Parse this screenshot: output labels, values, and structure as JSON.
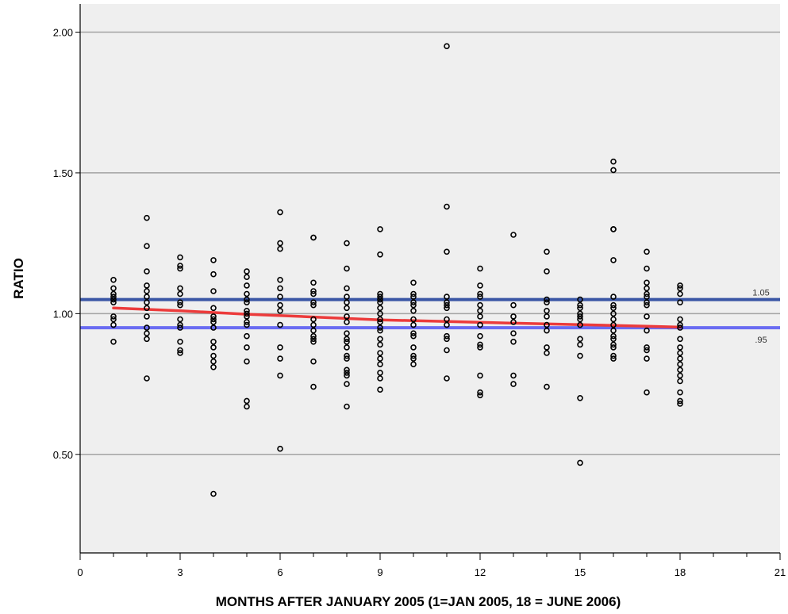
{
  "chart_data": {
    "type": "scatter",
    "xlabel": "MONTHS AFTER JANUARY 2005 (1=JAN 2005, 18 = JUNE 2006)",
    "ylabel": "RATIO",
    "xlim": [
      0,
      21
    ],
    "ylim": [
      0.15,
      2.1
    ],
    "x_ticks": [
      0,
      3,
      6,
      9,
      12,
      15,
      18,
      21
    ],
    "x_minor_step": 1,
    "y_ticks": [
      0.5,
      1.0,
      1.5,
      2.0
    ],
    "y_tick_labels": [
      "0.50",
      "1.00",
      "1.50",
      "2.00"
    ],
    "grid": "horizontal",
    "colors": {
      "plot_background": "#efefef",
      "gridline": "#a3a3a3",
      "marker": "#000000",
      "fit_line": "#ec3b3b",
      "upper_reference": "#3a56a5",
      "lower_reference": "#6a6cf2"
    },
    "reference_lines": [
      {
        "value": 1.05,
        "label": "1.05",
        "color": "#3a56a5"
      },
      {
        "value": 0.95,
        "label": ".95",
        "color": "#6a6cf2"
      }
    ],
    "fit_line": {
      "x": [
        1,
        3,
        5,
        7,
        9,
        11,
        13,
        15,
        17,
        18
      ],
      "y": [
        1.02,
        1.01,
        0.998,
        0.988,
        0.978,
        0.972,
        0.966,
        0.961,
        0.955,
        0.952
      ]
    },
    "points": [
      [
        1,
        1.12
      ],
      [
        1,
        1.09
      ],
      [
        1,
        1.07
      ],
      [
        1,
        1.06
      ],
      [
        1,
        1.05
      ],
      [
        1,
        1.04
      ],
      [
        1,
        0.99
      ],
      [
        1,
        0.98
      ],
      [
        1,
        0.96
      ],
      [
        1,
        0.9
      ],
      [
        2,
        1.34
      ],
      [
        2,
        1.24
      ],
      [
        2,
        1.15
      ],
      [
        2,
        1.1
      ],
      [
        2,
        1.08
      ],
      [
        2,
        1.06
      ],
      [
        2,
        1.04
      ],
      [
        2,
        1.02
      ],
      [
        2,
        0.99
      ],
      [
        2,
        0.95
      ],
      [
        2,
        0.93
      ],
      [
        2,
        0.91
      ],
      [
        2,
        0.77
      ],
      [
        3,
        1.2
      ],
      [
        3,
        1.17
      ],
      [
        3,
        1.16
      ],
      [
        3,
        1.09
      ],
      [
        3,
        1.07
      ],
      [
        3,
        1.04
      ],
      [
        3,
        1.03
      ],
      [
        3,
        0.98
      ],
      [
        3,
        0.96
      ],
      [
        3,
        0.95
      ],
      [
        3,
        0.9
      ],
      [
        3,
        0.87
      ],
      [
        3,
        0.86
      ],
      [
        4,
        1.19
      ],
      [
        4,
        1.14
      ],
      [
        4,
        1.08
      ],
      [
        4,
        1.02
      ],
      [
        4,
        0.99
      ],
      [
        4,
        0.98
      ],
      [
        4,
        0.97
      ],
      [
        4,
        0.95
      ],
      [
        4,
        0.9
      ],
      [
        4,
        0.88
      ],
      [
        4,
        0.85
      ],
      [
        4,
        0.83
      ],
      [
        4,
        0.81
      ],
      [
        4,
        0.36
      ],
      [
        5,
        1.15
      ],
      [
        5,
        1.13
      ],
      [
        5,
        1.1
      ],
      [
        5,
        1.07
      ],
      [
        5,
        1.05
      ],
      [
        5,
        1.04
      ],
      [
        5,
        1.01
      ],
      [
        5,
        1.0
      ],
      [
        5,
        0.99
      ],
      [
        5,
        0.97
      ],
      [
        5,
        0.96
      ],
      [
        5,
        0.92
      ],
      [
        5,
        0.88
      ],
      [
        5,
        0.83
      ],
      [
        5,
        0.69
      ],
      [
        5,
        0.67
      ],
      [
        6,
        1.36
      ],
      [
        6,
        1.25
      ],
      [
        6,
        1.23
      ],
      [
        6,
        1.12
      ],
      [
        6,
        1.09
      ],
      [
        6,
        1.06
      ],
      [
        6,
        1.03
      ],
      [
        6,
        1.01
      ],
      [
        6,
        0.96
      ],
      [
        6,
        0.88
      ],
      [
        6,
        0.84
      ],
      [
        6,
        0.78
      ],
      [
        6,
        0.52
      ],
      [
        7,
        1.27
      ],
      [
        7,
        1.27
      ],
      [
        7,
        1.11
      ],
      [
        7,
        1.08
      ],
      [
        7,
        1.07
      ],
      [
        7,
        1.04
      ],
      [
        7,
        1.03
      ],
      [
        7,
        0.98
      ],
      [
        7,
        0.96
      ],
      [
        7,
        0.94
      ],
      [
        7,
        0.92
      ],
      [
        7,
        0.91
      ],
      [
        7,
        0.9
      ],
      [
        7,
        0.83
      ],
      [
        7,
        0.74
      ],
      [
        8,
        1.25
      ],
      [
        8,
        1.16
      ],
      [
        8,
        1.09
      ],
      [
        8,
        1.06
      ],
      [
        8,
        1.04
      ],
      [
        8,
        1.02
      ],
      [
        8,
        0.99
      ],
      [
        8,
        0.97
      ],
      [
        8,
        0.93
      ],
      [
        8,
        0.91
      ],
      [
        8,
        0.9
      ],
      [
        8,
        0.88
      ],
      [
        8,
        0.85
      ],
      [
        8,
        0.84
      ],
      [
        8,
        0.8
      ],
      [
        8,
        0.79
      ],
      [
        8,
        0.78
      ],
      [
        8,
        0.75
      ],
      [
        8,
        0.67
      ],
      [
        9,
        1.3
      ],
      [
        9,
        1.21
      ],
      [
        9,
        1.07
      ],
      [
        9,
        1.06
      ],
      [
        9,
        1.05
      ],
      [
        9,
        1.04
      ],
      [
        9,
        1.02
      ],
      [
        9,
        1.0
      ],
      [
        9,
        0.98
      ],
      [
        9,
        0.97
      ],
      [
        9,
        0.95
      ],
      [
        9,
        0.94
      ],
      [
        9,
        0.91
      ],
      [
        9,
        0.89
      ],
      [
        9,
        0.86
      ],
      [
        9,
        0.84
      ],
      [
        9,
        0.82
      ],
      [
        9,
        0.79
      ],
      [
        9,
        0.77
      ],
      [
        9,
        0.73
      ],
      [
        10,
        1.11
      ],
      [
        10,
        1.07
      ],
      [
        10,
        1.06
      ],
      [
        10,
        1.04
      ],
      [
        10,
        1.03
      ],
      [
        10,
        1.01
      ],
      [
        10,
        0.98
      ],
      [
        10,
        0.96
      ],
      [
        10,
        0.93
      ],
      [
        10,
        0.92
      ],
      [
        10,
        0.88
      ],
      [
        10,
        0.85
      ],
      [
        10,
        0.84
      ],
      [
        10,
        0.82
      ],
      [
        11,
        1.95
      ],
      [
        11,
        1.38
      ],
      [
        11,
        1.22
      ],
      [
        11,
        1.06
      ],
      [
        11,
        1.04
      ],
      [
        11,
        1.03
      ],
      [
        11,
        1.02
      ],
      [
        11,
        0.98
      ],
      [
        11,
        0.96
      ],
      [
        11,
        0.92
      ],
      [
        11,
        0.91
      ],
      [
        11,
        0.87
      ],
      [
        11,
        0.77
      ],
      [
        12,
        1.16
      ],
      [
        12,
        1.1
      ],
      [
        12,
        1.07
      ],
      [
        12,
        1.06
      ],
      [
        12,
        1.03
      ],
      [
        12,
        1.01
      ],
      [
        12,
        0.99
      ],
      [
        12,
        0.96
      ],
      [
        12,
        0.92
      ],
      [
        12,
        0.89
      ],
      [
        12,
        0.88
      ],
      [
        12,
        0.78
      ],
      [
        12,
        0.72
      ],
      [
        12,
        0.71
      ],
      [
        13,
        1.28
      ],
      [
        13,
        1.03
      ],
      [
        13,
        0.99
      ],
      [
        13,
        0.97
      ],
      [
        13,
        0.93
      ],
      [
        13,
        0.9
      ],
      [
        13,
        0.78
      ],
      [
        13,
        0.75
      ],
      [
        14,
        1.22
      ],
      [
        14,
        1.15
      ],
      [
        14,
        1.05
      ],
      [
        14,
        1.04
      ],
      [
        14,
        1.01
      ],
      [
        14,
        0.99
      ],
      [
        14,
        0.96
      ],
      [
        14,
        0.94
      ],
      [
        14,
        0.88
      ],
      [
        14,
        0.86
      ],
      [
        14,
        0.74
      ],
      [
        15,
        1.05
      ],
      [
        15,
        1.03
      ],
      [
        15,
        1.02
      ],
      [
        15,
        1.0
      ],
      [
        15,
        0.99
      ],
      [
        15,
        0.98
      ],
      [
        15,
        0.96
      ],
      [
        15,
        0.91
      ],
      [
        15,
        0.89
      ],
      [
        15,
        0.85
      ],
      [
        15,
        0.7
      ],
      [
        15,
        0.47
      ],
      [
        16,
        1.54
      ],
      [
        16,
        1.51
      ],
      [
        16,
        1.3
      ],
      [
        16,
        1.3
      ],
      [
        16,
        1.19
      ],
      [
        16,
        1.06
      ],
      [
        16,
        1.03
      ],
      [
        16,
        1.02
      ],
      [
        16,
        1.0
      ],
      [
        16,
        0.98
      ],
      [
        16,
        0.96
      ],
      [
        16,
        0.94
      ],
      [
        16,
        0.92
      ],
      [
        16,
        0.91
      ],
      [
        16,
        0.89
      ],
      [
        16,
        0.88
      ],
      [
        16,
        0.85
      ],
      [
        16,
        0.84
      ],
      [
        17,
        1.22
      ],
      [
        17,
        1.16
      ],
      [
        17,
        1.11
      ],
      [
        17,
        1.09
      ],
      [
        17,
        1.07
      ],
      [
        17,
        1.06
      ],
      [
        17,
        1.04
      ],
      [
        17,
        1.03
      ],
      [
        17,
        0.99
      ],
      [
        17,
        0.94
      ],
      [
        17,
        0.88
      ],
      [
        17,
        0.87
      ],
      [
        17,
        0.84
      ],
      [
        17,
        0.72
      ],
      [
        18,
        1.1
      ],
      [
        18,
        1.09
      ],
      [
        18,
        1.07
      ],
      [
        18,
        1.04
      ],
      [
        18,
        0.98
      ],
      [
        18,
        0.96
      ],
      [
        18,
        0.95
      ],
      [
        18,
        0.91
      ],
      [
        18,
        0.88
      ],
      [
        18,
        0.86
      ],
      [
        18,
        0.84
      ],
      [
        18,
        0.82
      ],
      [
        18,
        0.8
      ],
      [
        18,
        0.78
      ],
      [
        18,
        0.76
      ],
      [
        18,
        0.72
      ],
      [
        18,
        0.69
      ],
      [
        18,
        0.68
      ]
    ]
  }
}
